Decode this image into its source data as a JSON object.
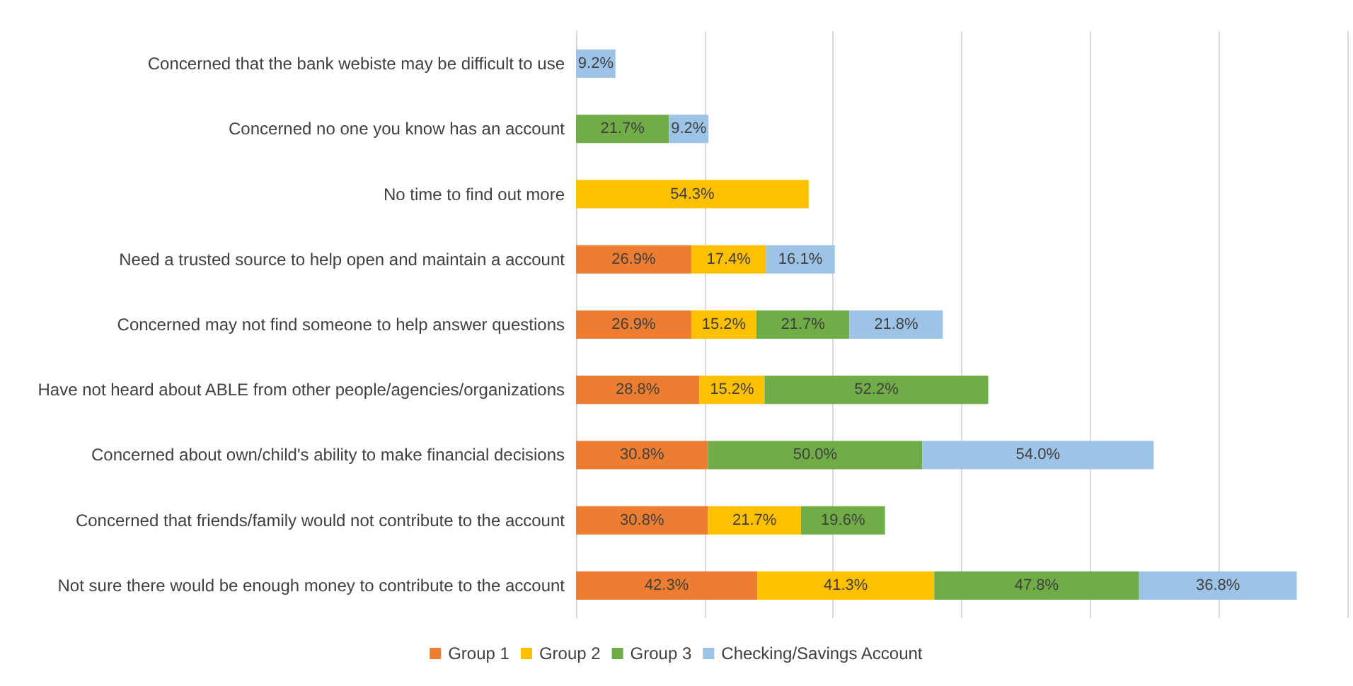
{
  "chart_data": {
    "type": "bar",
    "orientation": "horizontal",
    "stacked": true,
    "grid": "x",
    "legend": "bottom",
    "tick_labels": "y",
    "categories": [
      "Concerned that the bank webiste may be difficult to use",
      "Concerned no one you know has an account",
      "No time to find out more",
      "Need a trusted source to help open and maintain a account",
      "Concerned may not find someone to help answer questions",
      "Have not heard about ABLE from other people/agencies/organizations",
      "Concerned about own/child's ability to make financial decisions",
      "Concerned that friends/family would not contribute to the account",
      "Not sure there would be enough money to contribute to the account"
    ],
    "series": [
      {
        "name": "Group 1",
        "color": "#ed7d31",
        "values": [
          null,
          null,
          null,
          26.9,
          26.9,
          28.8,
          30.8,
          30.8,
          42.3
        ],
        "value_labels": [
          null,
          null,
          null,
          "26.9%",
          "26.9%",
          "28.8%",
          "30.8%",
          "30.8%",
          "42.3%"
        ]
      },
      {
        "name": "Group 2",
        "color": "#ffc000",
        "values": [
          null,
          null,
          54.3,
          17.4,
          15.2,
          15.2,
          null,
          21.7,
          41.3
        ],
        "value_labels": [
          null,
          null,
          "54.3%",
          "17.4%",
          "15.2%",
          "15.2%",
          null,
          "21.7%",
          "41.3%"
        ]
      },
      {
        "name": "Group 3",
        "color": "#70ad47",
        "values": [
          null,
          21.7,
          null,
          null,
          21.7,
          52.2,
          50.0,
          19.6,
          47.8
        ],
        "value_labels": [
          null,
          "21.7%",
          null,
          null,
          "21.7%",
          "52.2%",
          "50.0%",
          "19.6%",
          "47.8%"
        ]
      },
      {
        "name": "Checking/Savings Account",
        "color": "#9dc3e6",
        "values": [
          9.2,
          9.2,
          null,
          16.1,
          21.8,
          null,
          54.0,
          null,
          36.8
        ],
        "value_labels": [
          "9.2%",
          "9.2%",
          null,
          "16.1%",
          "21.8%",
          null,
          "54.0%",
          null,
          "36.8%"
        ]
      }
    ]
  }
}
